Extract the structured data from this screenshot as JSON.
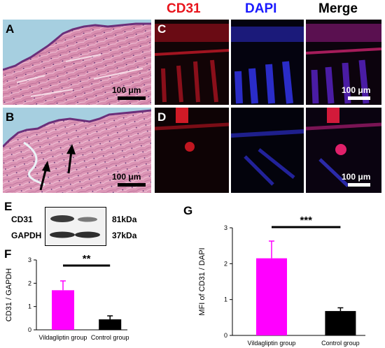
{
  "panels": {
    "A": "A",
    "B": "B",
    "C": "C",
    "D": "D",
    "E": "E",
    "F": "F",
    "G": "G"
  },
  "headers": {
    "cd31": "CD31",
    "dapi": "DAPI",
    "merge": "Merge"
  },
  "header_colors": {
    "cd31": "#e8141c",
    "dapi": "#1a1aff",
    "merge": "#000000"
  },
  "scalebar": "100 μm",
  "western_blot": {
    "rows": [
      {
        "protein": "CD31",
        "size": "81kDa"
      },
      {
        "protein": "GAPDH",
        "size": "37kDa"
      }
    ]
  },
  "chart_data": [
    {
      "type": "bar",
      "panel": "F",
      "categories": [
        "Vildagliptin group",
        "Control group"
      ],
      "values": [
        1.7,
        0.45
      ],
      "errors": [
        0.4,
        0.15
      ],
      "colors": [
        "#ff00ff",
        "#000000"
      ],
      "ylabel": "CD31 / GAPDH",
      "ylim": [
        0,
        3
      ],
      "yticks": [
        "0",
        "1",
        "2",
        "3"
      ],
      "significance": "**"
    },
    {
      "type": "bar",
      "panel": "G",
      "categories": [
        "Vildagliptin group",
        "Control group"
      ],
      "values": [
        2.15,
        0.68
      ],
      "errors": [
        0.48,
        0.09
      ],
      "colors": [
        "#ff00ff",
        "#000000"
      ],
      "ylabel": "MFI of CD31 / DAPI",
      "ylim": [
        0,
        3
      ],
      "yticks": [
        "0",
        "1",
        "2",
        "3"
      ],
      "significance": "***"
    }
  ]
}
